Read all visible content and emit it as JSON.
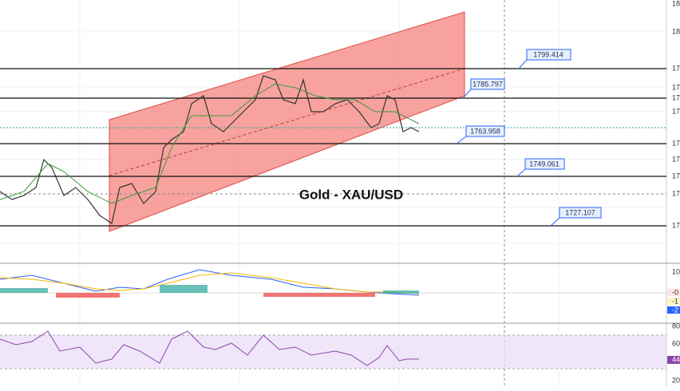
{
  "header": {
    "title": "Gold - XAU/USD"
  },
  "levels": [
    {
      "label": "1799.414"
    },
    {
      "label": "1785.797"
    },
    {
      "label": "1763.958"
    },
    {
      "label": "1749.061"
    },
    {
      "label": "1727.107"
    }
  ],
  "right_axis": {
    "price_labels": [
      "18",
      "18",
      "17",
      "17",
      "17",
      "17",
      "17",
      "17",
      "17",
      "17",
      "17"
    ],
    "macd_labels": [
      "10",
      "-0",
      "-1",
      "-2"
    ],
    "rsi_labels": [
      "80",
      "60",
      "44",
      "20"
    ]
  }
}
